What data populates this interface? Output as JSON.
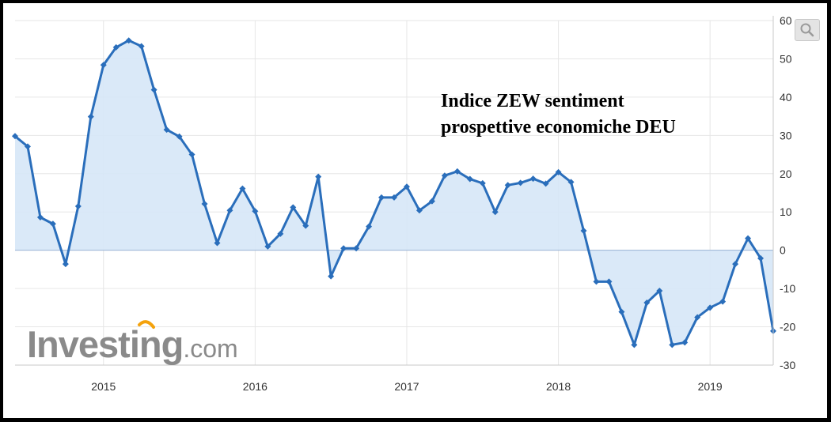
{
  "brand": {
    "name_main": "Investing",
    "name_suffix": ".com"
  },
  "colors": {
    "line": "#2a6ebb",
    "area": "#d6e7f7",
    "grid": "#e6e6e6",
    "zero_line": "#9ab5d6",
    "brand_gray": "#8a8a8a",
    "brand_accent": "#f4a20c"
  },
  "icons": {
    "zoom": "magnifier-icon"
  },
  "chart_data": {
    "type": "area",
    "title": [
      "Indice ZEW sentiment",
      "prospettive economiche DEU"
    ],
    "xlabel": "",
    "ylabel": "",
    "x_start": "2014-06",
    "x_end": "2019-06",
    "x_tick_labels": [
      "2015",
      "2016",
      "2017",
      "2018",
      "2019"
    ],
    "y_ticks": [
      60,
      50,
      40,
      30,
      20,
      10,
      0,
      -10,
      -20,
      -30
    ],
    "ylim": [
      -30,
      60
    ],
    "y_axis_position": "right",
    "grid": true,
    "legend": "none",
    "series": [
      {
        "x": [
          "2014-06",
          "2014-07",
          "2014-08",
          "2014-09",
          "2014-10",
          "2014-11",
          "2014-12",
          "2015-01",
          "2015-02",
          "2015-03",
          "2015-04",
          "2015-05",
          "2015-06",
          "2015-07",
          "2015-08",
          "2015-09",
          "2015-10",
          "2015-11",
          "2015-12",
          "2016-01",
          "2016-02",
          "2016-03",
          "2016-04",
          "2016-05",
          "2016-06",
          "2016-07",
          "2016-08",
          "2016-09",
          "2016-10",
          "2016-11",
          "2016-12",
          "2017-01",
          "2017-02",
          "2017-03",
          "2017-04",
          "2017-05",
          "2017-06",
          "2017-07",
          "2017-08",
          "2017-09",
          "2017-10",
          "2017-11",
          "2017-12",
          "2018-01",
          "2018-02",
          "2018-03",
          "2018-04",
          "2018-05",
          "2018-06",
          "2018-07",
          "2018-08",
          "2018-09",
          "2018-10",
          "2018-11",
          "2018-12",
          "2019-01",
          "2019-02",
          "2019-03",
          "2019-04",
          "2019-05",
          "2019-06"
        ],
        "values": [
          29.8,
          27.1,
          8.6,
          6.9,
          -3.6,
          11.5,
          34.9,
          48.4,
          53.0,
          54.8,
          53.3,
          41.9,
          31.5,
          29.7,
          25.0,
          12.1,
          1.9,
          10.4,
          16.1,
          10.2,
          1.0,
          4.3,
          11.2,
          6.4,
          19.2,
          -6.8,
          0.5,
          0.5,
          6.2,
          13.8,
          13.8,
          16.6,
          10.4,
          12.8,
          19.5,
          20.6,
          18.6,
          17.5,
          10.0,
          17.0,
          17.6,
          18.7,
          17.4,
          20.4,
          17.8,
          5.1,
          -8.2,
          -8.2,
          -16.1,
          -24.7,
          -13.7,
          -10.6,
          -24.7,
          -24.1,
          -17.5,
          -15.0,
          -13.4,
          -3.6,
          3.1,
          -2.1,
          -21.1
        ]
      }
    ]
  }
}
